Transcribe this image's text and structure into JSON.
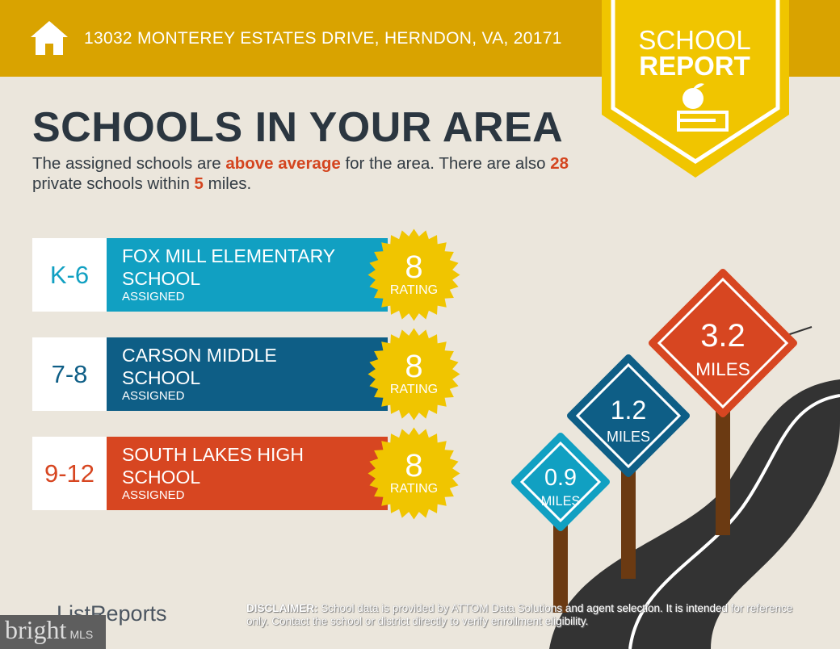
{
  "header": {
    "address": "13032 MONTEREY ESTATES DRIVE, HERNDON, VA, 20171",
    "icon": "home-icon"
  },
  "badge": {
    "line1": "SCHOOL",
    "line2": "REPORT",
    "icon": "apple-on-book-icon"
  },
  "title": "SCHOOLS IN YOUR AREA",
  "intro": {
    "p1": "The assigned schools are ",
    "hl1": "above average",
    "p2": " for the area. There are also ",
    "hl2": "28",
    "p3": " private schools within ",
    "hl3": "5",
    "p4": " miles."
  },
  "schools": [
    {
      "grade": "K-6",
      "name1": "FOX MILL ELEMENTARY",
      "name2": "SCHOOL",
      "status": "ASSIGNED",
      "rating": "8",
      "rating_label": "RATING",
      "color": "#11a0c2"
    },
    {
      "grade": "7-8",
      "name1": "CARSON MIDDLE",
      "name2": "SCHOOL",
      "status": "ASSIGNED",
      "rating": "8",
      "rating_label": "RATING",
      "color": "#0e5e86"
    },
    {
      "grade": "9-12",
      "name1": "SOUTH LAKES HIGH",
      "name2": "SCHOOL",
      "status": "ASSIGNED",
      "rating": "8",
      "rating_label": "RATING",
      "color": "#d74621"
    }
  ],
  "signs": [
    {
      "value": "0.9",
      "unit": "MILES",
      "color": "#11a0c2"
    },
    {
      "value": "1.2",
      "unit": "MILES",
      "color": "#0e5e86"
    },
    {
      "value": "3.2",
      "unit": "MILES",
      "color": "#d74621"
    }
  ],
  "footer": {
    "logo": "ListReports",
    "disclaimer_label": "DISCLAIMER:",
    "disclaimer": " School data is provided by ATTOM Data Solutions and agent selection. It is intended for reference only. Contact the school or district directly to verify enrollment eligibility.",
    "bright": "bright",
    "mls": "MLS"
  }
}
